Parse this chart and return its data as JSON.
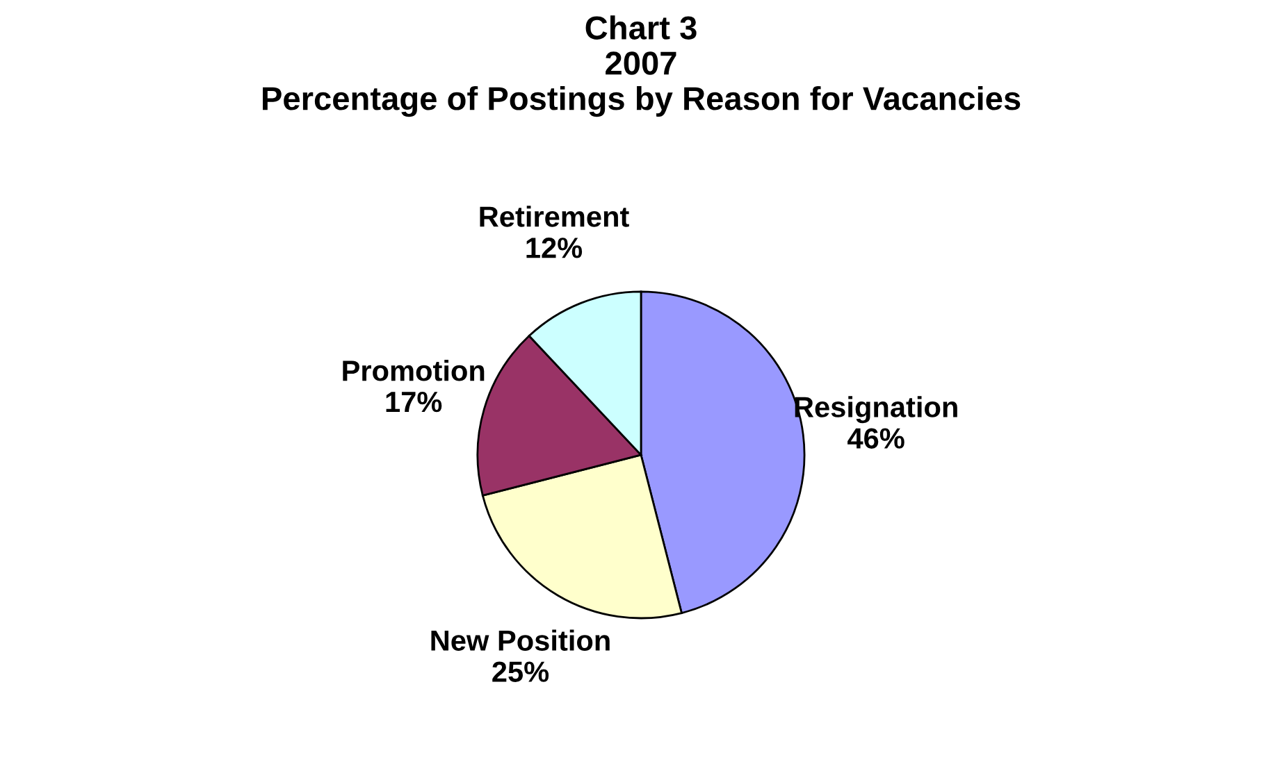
{
  "chart_data": {
    "type": "pie",
    "title": "Chart 3\n2007\nPercentage of Postings by Reason for Vacancies",
    "categories": [
      "Resignation",
      "New Position",
      "Promotion",
      "Retirement"
    ],
    "values": [
      46,
      25,
      17,
      12
    ],
    "colors": [
      "#9999ff",
      "#ffffcc",
      "#993366",
      "#ccffff"
    ],
    "value_labels": [
      "46%",
      "25%",
      "17%",
      "12%"
    ],
    "legend": false
  }
}
